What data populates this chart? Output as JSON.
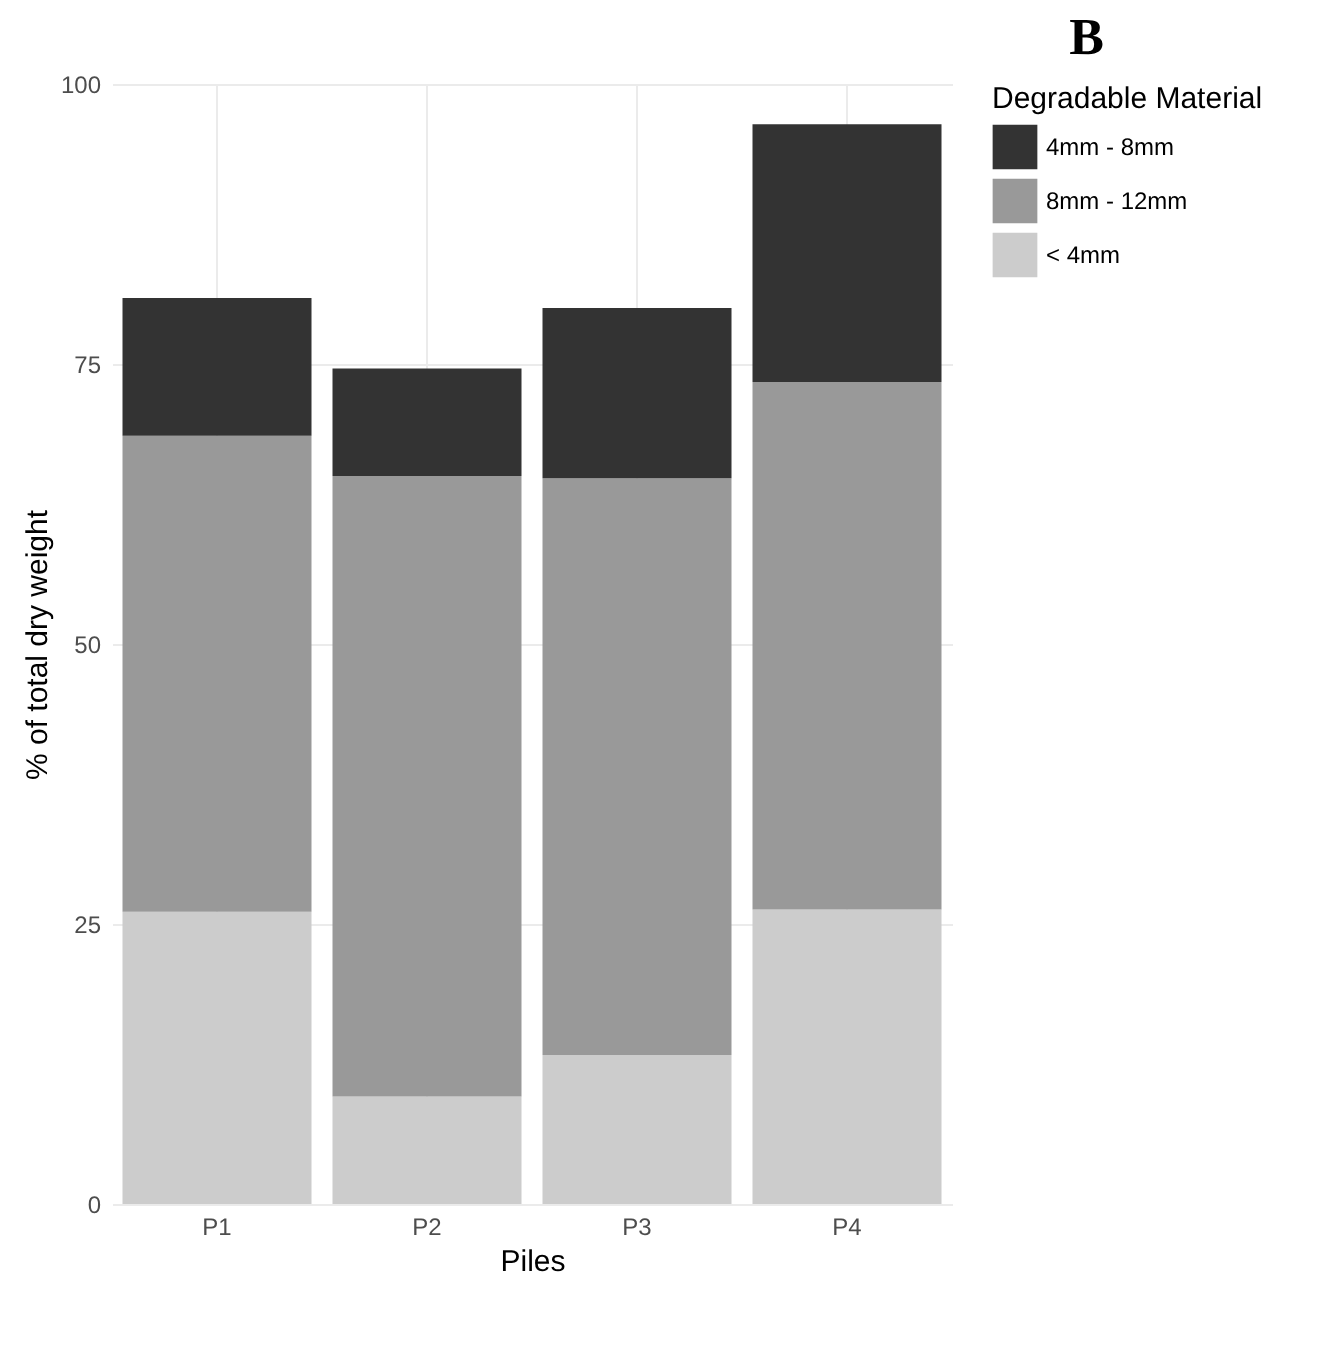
{
  "chart_data": {
    "type": "bar",
    "title": "B",
    "xlabel": "Piles",
    "ylabel": "% of total dry weight",
    "legend_title": "Degradable Material",
    "categories": [
      "P1",
      "P2",
      "P3",
      "P4"
    ],
    "stacked": true,
    "ylim": [
      0,
      100
    ],
    "yticks": [
      0,
      25,
      50,
      75,
      100
    ],
    "grid": true,
    "legend": "right",
    "series": [
      {
        "name": "< 4mm",
        "color": "#cccccc",
        "values": [
          26.1,
          9.6,
          13.3,
          26.3
        ]
      },
      {
        "name": "8mm - 12mm",
        "color": "#999999",
        "values": [
          42.5,
          55.4,
          51.5,
          47.1
        ]
      },
      {
        "name": "4mm - 8mm",
        "color": "#333333",
        "values": [
          12.3,
          9.6,
          15.2,
          23.0
        ]
      }
    ]
  }
}
